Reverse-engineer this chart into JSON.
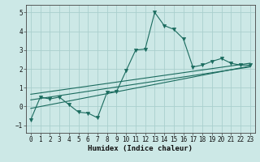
{
  "xlabel": "Humidex (Indice chaleur)",
  "xlim": [
    -0.5,
    23.5
  ],
  "ylim": [
    -1.4,
    5.4
  ],
  "yticks": [
    -1,
    0,
    1,
    2,
    3,
    4,
    5
  ],
  "xticks": [
    0,
    1,
    2,
    3,
    4,
    5,
    6,
    7,
    8,
    9,
    10,
    11,
    12,
    13,
    14,
    15,
    16,
    17,
    18,
    19,
    20,
    21,
    22,
    23
  ],
  "bg_color": "#cce8e6",
  "grid_color": "#aacfcd",
  "line_color": "#1a6b5e",
  "main_line_x": [
    0,
    1,
    2,
    3,
    4,
    5,
    6,
    7,
    8,
    9,
    10,
    11,
    12,
    13,
    14,
    15,
    16,
    17,
    18,
    19,
    20,
    21,
    22,
    23
  ],
  "main_line_y": [
    -0.7,
    0.5,
    0.4,
    0.5,
    0.1,
    -0.3,
    -0.35,
    -0.6,
    0.75,
    0.8,
    1.9,
    3.0,
    3.05,
    5.0,
    4.3,
    4.1,
    3.6,
    2.1,
    2.2,
    2.4,
    2.55,
    2.3,
    2.2,
    2.2
  ],
  "reg_lines": [
    {
      "x": [
        0,
        23
      ],
      "y": [
        -0.1,
        2.15
      ]
    },
    {
      "x": [
        0,
        23
      ],
      "y": [
        0.35,
        2.1
      ]
    },
    {
      "x": [
        0,
        23
      ],
      "y": [
        0.65,
        2.3
      ]
    }
  ]
}
